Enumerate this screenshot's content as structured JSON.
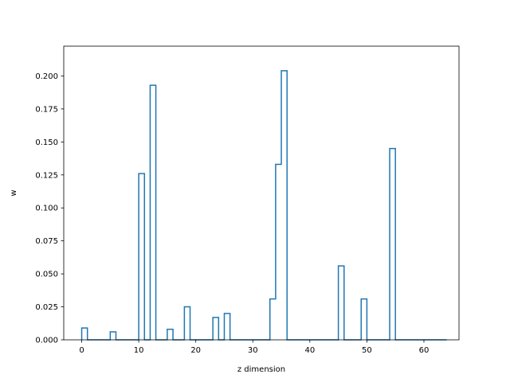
{
  "chart_data": {
    "type": "step",
    "title": "",
    "xlabel": "z dimension",
    "ylabel": "w",
    "xlim": [
      -3.15,
      66.15
    ],
    "ylim": [
      0,
      0.2226
    ],
    "xticks": [
      0,
      10,
      20,
      30,
      40,
      50,
      60
    ],
    "xtick_labels": [
      "0",
      "10",
      "20",
      "30",
      "40",
      "50",
      "60"
    ],
    "yticks": [
      0.0,
      0.025,
      0.05,
      0.075,
      0.1,
      0.125,
      0.15,
      0.175,
      0.2
    ],
    "ytick_labels": [
      "0.000",
      "0.025",
      "0.050",
      "0.075",
      "0.100",
      "0.125",
      "0.150",
      "0.175",
      "0.200"
    ],
    "grid": false,
    "legend": "none",
    "series": [
      {
        "color": "#1f77b4",
        "bin_edges": [
          0,
          1,
          2,
          3,
          4,
          5,
          6,
          7,
          8,
          9,
          10,
          11,
          12,
          13,
          14,
          15,
          16,
          17,
          18,
          19,
          20,
          21,
          22,
          23,
          24,
          25,
          26,
          27,
          28,
          29,
          30,
          31,
          32,
          33,
          34,
          35,
          36,
          37,
          38,
          39,
          40,
          41,
          42,
          43,
          44,
          45,
          46,
          47,
          48,
          49,
          50,
          51,
          52,
          53,
          54,
          55,
          56,
          57,
          58,
          59,
          60,
          61,
          62,
          63,
          64
        ],
        "values": [
          0.009,
          0,
          0,
          0,
          0,
          0.006,
          0,
          0,
          0,
          0,
          0.126,
          0,
          0.193,
          0,
          0,
          0.008,
          0,
          0,
          0.025,
          0,
          0,
          0,
          0,
          0.017,
          0,
          0.02,
          0,
          0,
          0,
          0,
          0,
          0,
          0,
          0.031,
          0.133,
          0.204,
          0,
          0,
          0,
          0,
          0,
          0,
          0,
          0,
          0,
          0.056,
          0,
          0,
          0,
          0.031,
          0,
          0,
          0,
          0,
          0.145,
          0,
          0,
          0,
          0,
          0,
          0,
          0,
          0,
          0
        ]
      }
    ]
  }
}
